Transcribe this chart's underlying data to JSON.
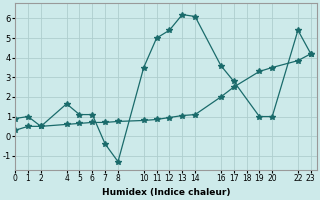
{
  "xlabel": "Humidex (Indice chaleur)",
  "background_color": "#cdeaea",
  "grid_color": "#aecece",
  "line_color": "#1a6b6b",
  "series1": {
    "x": [
      0,
      1,
      2,
      4,
      5,
      6,
      7,
      8,
      10,
      11,
      12,
      13,
      14,
      16,
      17,
      19,
      20,
      22,
      23
    ],
    "y": [
      0.9,
      1.0,
      0.5,
      1.65,
      1.1,
      1.1,
      -0.4,
      -1.3,
      3.5,
      5.0,
      5.4,
      6.2,
      6.1,
      3.6,
      2.8,
      1.0,
      1.0,
      5.4,
      4.2
    ]
  },
  "series2": {
    "x": [
      0,
      1,
      2,
      4,
      5,
      6,
      7,
      8,
      10,
      11,
      12,
      13,
      14,
      16,
      17,
      19,
      20,
      22,
      23
    ],
    "y": [
      0.3,
      0.5,
      0.5,
      0.6,
      0.65,
      0.7,
      0.7,
      0.75,
      0.8,
      0.85,
      0.95,
      1.05,
      1.1,
      2.0,
      2.5,
      3.3,
      3.5,
      3.85,
      4.2
    ]
  },
  "xlim": [
    0,
    23.5
  ],
  "ylim": [
    -1.7,
    6.8
  ],
  "yticks": [
    -1,
    0,
    1,
    2,
    3,
    4,
    5,
    6
  ],
  "xtick_positions": [
    0,
    1,
    2,
    4,
    5,
    6,
    7,
    8,
    10,
    11,
    12,
    13,
    14,
    16,
    17,
    18,
    19,
    20,
    22,
    23
  ],
  "xtick_labels": [
    "0",
    "1",
    "2",
    "4",
    "5",
    "6",
    "7",
    "8",
    "10",
    "11",
    "12",
    "13",
    "14",
    "16",
    "17",
    "18",
    "19",
    "20",
    "22",
    "23"
  ]
}
